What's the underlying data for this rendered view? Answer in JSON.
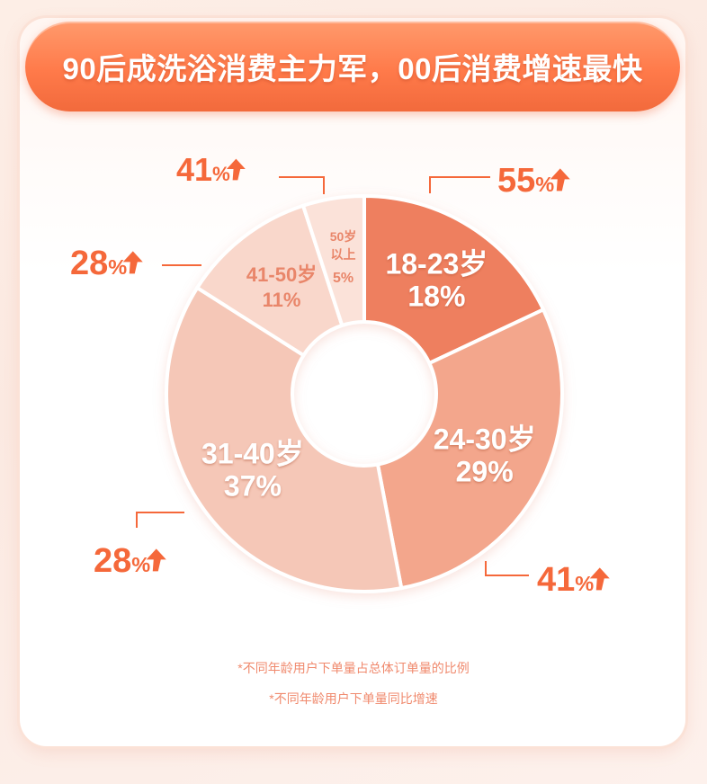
{
  "title": "90后成洗浴消费主力军，00后消费增速最快",
  "chart_data": {
    "type": "pie",
    "donut": true,
    "segments": [
      {
        "label": "18-23岁",
        "value": 18,
        "value_text": "18%",
        "growth": "55%",
        "color": "#ee7f5e"
      },
      {
        "label": "24-30岁",
        "value": 29,
        "value_text": "29%",
        "growth": "41%",
        "color": "#f3a68c"
      },
      {
        "label": "31-40岁",
        "value": 37,
        "value_text": "37%",
        "growth": "28%",
        "color": "#f5c7b7"
      },
      {
        "label": "41-50岁",
        "value": 11,
        "value_text": "11%",
        "growth": "28%",
        "color": "#f9d7cb"
      },
      {
        "label": "50岁以上",
        "value": 5,
        "value_text": "5%",
        "growth": "41%",
        "color": "#fbe2d9"
      }
    ],
    "notes": [
      "*不同年龄用户下单量占总体订单量的比例",
      "*不同年龄用户下单量同比增速"
    ]
  }
}
